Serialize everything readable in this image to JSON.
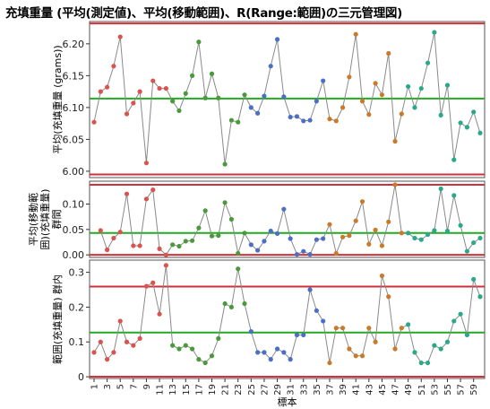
{
  "title": "充填重量 (平均(測定値)、平均(移動範囲)、R(Range:範囲)の三元管理図)",
  "chart_data": {
    "type": "line",
    "xlabel": "標本",
    "x_tick_labels": [
      "1",
      "3",
      "5",
      "7",
      "9",
      "11",
      "13",
      "15",
      "17",
      "19",
      "21",
      "23",
      "25",
      "27",
      "29",
      "31",
      "33",
      "35",
      "37",
      "39",
      "41",
      "43",
      "45",
      "47",
      "49",
      "51",
      "53",
      "55",
      "57",
      "59"
    ],
    "phase_colors": [
      "#d9534f",
      "#4a9a3c",
      "#4a6fc4",
      "#c97a2a",
      "#2aa88a"
    ],
    "limit_line_color": "#d0303a",
    "center_line_color": "#22aa22",
    "panels": [
      {
        "id": "mean",
        "ylabel_lines": [
          "平均(充填重量 (grams))"
        ],
        "ylim": [
          5.99,
          6.235
        ],
        "yticks": [
          6.0,
          6.05,
          6.1,
          6.15,
          6.2
        ],
        "ytick_labels": [
          "6.00",
          "6.05",
          "6.10",
          "6.15",
          "6.20"
        ],
        "ucl": 6.232,
        "center": 6.114,
        "lcl": 5.995,
        "values": [
          6.077,
          6.125,
          6.132,
          6.165,
          6.211,
          6.09,
          6.107,
          6.125,
          6.013,
          6.142,
          6.13,
          6.13,
          6.11,
          6.095,
          6.122,
          6.15,
          6.203,
          6.115,
          6.153,
          6.115,
          6.011,
          6.08,
          6.077,
          6.12,
          6.1,
          6.091,
          6.118,
          6.165,
          6.207,
          6.117,
          6.085,
          6.086,
          6.079,
          6.08,
          6.11,
          6.142,
          6.082,
          6.079,
          6.1,
          6.148,
          6.215,
          6.11,
          6.089,
          6.138,
          6.12,
          6.185,
          6.047,
          6.09,
          6.133,
          6.1,
          6.13,
          6.17,
          6.218,
          6.088,
          6.135,
          6.018,
          6.076,
          6.069,
          6.093,
          6.06
        ]
      },
      {
        "id": "moving-range-mean",
        "ylabel_lines": [
          "平均(移動範",
          "囲)(充填重量)",
          "群間"
        ],
        "ylim": [
          -0.005,
          0.145
        ],
        "yticks": [
          0.0,
          0.05,
          0.1
        ],
        "ytick_labels": [
          "0.00",
          "0.05",
          "0.10"
        ],
        "ucl": 0.138,
        "center": 0.043,
        "lcl": 0.0,
        "values": [
          null,
          0.048,
          0.01,
          0.033,
          0.045,
          0.12,
          0.018,
          0.018,
          0.11,
          0.128,
          0.012,
          0.0,
          0.02,
          0.017,
          0.027,
          0.028,
          0.053,
          0.087,
          0.037,
          0.038,
          0.103,
          0.07,
          0.003,
          0.043,
          0.02,
          0.009,
          0.027,
          0.047,
          0.042,
          0.09,
          0.032,
          0.001,
          0.007,
          0.001,
          0.03,
          0.032,
          0.06,
          0.003,
          0.035,
          0.038,
          0.067,
          0.105,
          0.021,
          0.049,
          0.018,
          0.065,
          0.138,
          0.043,
          0.043,
          0.033,
          0.03,
          0.04,
          0.048,
          0.13,
          0.047,
          0.117,
          0.058,
          0.007,
          0.024,
          0.033
        ]
      },
      {
        "id": "range",
        "ylabel_lines": [
          "範囲(充填重量) 群内"
        ],
        "ylim": [
          -0.005,
          0.335
        ],
        "yticks": [
          0.0,
          0.1,
          0.2,
          0.3
        ],
        "ytick_labels": [
          "0",
          "0.1",
          "0.2",
          "0.3"
        ],
        "ucl": 0.259,
        "center": 0.127,
        "lcl": 0.0,
        "values": [
          0.07,
          0.1,
          0.05,
          0.07,
          0.16,
          0.1,
          0.09,
          0.11,
          0.26,
          0.27,
          0.18,
          0.32,
          0.09,
          0.08,
          0.09,
          0.08,
          0.05,
          0.04,
          0.06,
          0.11,
          0.21,
          0.2,
          0.31,
          0.21,
          0.13,
          0.07,
          0.07,
          0.05,
          0.08,
          0.07,
          0.05,
          0.12,
          0.12,
          0.25,
          0.19,
          0.16,
          0.04,
          0.14,
          0.14,
          0.08,
          0.06,
          0.06,
          0.14,
          0.1,
          0.29,
          0.23,
          0.08,
          0.14,
          0.15,
          0.07,
          0.04,
          0.04,
          0.09,
          0.08,
          0.1,
          0.16,
          0.18,
          0.12,
          0.28,
          0.23
        ]
      }
    ],
    "phases": [
      [
        1,
        12
      ],
      [
        13,
        24
      ],
      [
        25,
        36
      ],
      [
        37,
        48
      ],
      [
        49,
        60
      ]
    ]
  }
}
